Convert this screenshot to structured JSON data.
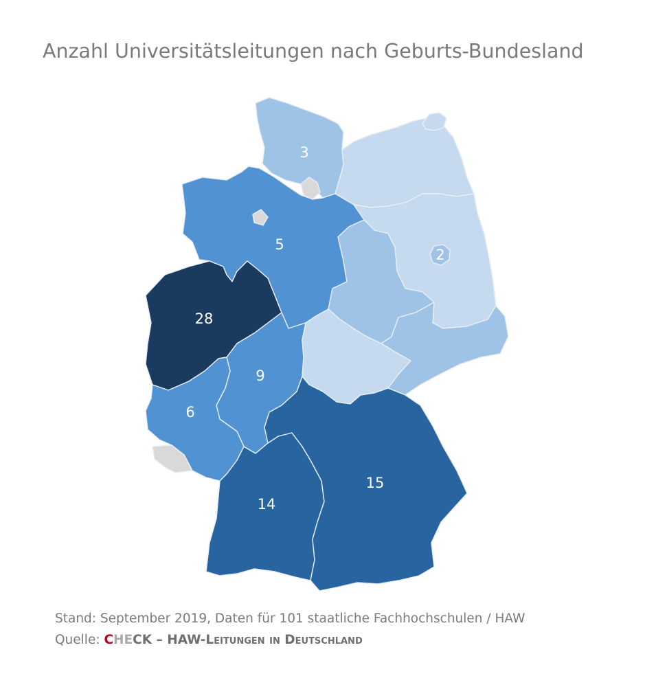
{
  "title": "Anzahl Universitätsleitungen nach Geburts-Bundesland",
  "colors": {
    "scale_1": "#c5daef",
    "scale_2": "#9fc3e6",
    "scale_3": "#5192d3",
    "scale_4": "#2865a0",
    "scale_5": "#1b3a60",
    "no_data": "#d9d9d9"
  },
  "map_values": [
    {
      "region": "schleswig-holstein",
      "value": "3"
    },
    {
      "region": "niedersachsen",
      "value": "5"
    },
    {
      "region": "berlin",
      "value": "2"
    },
    {
      "region": "nordrhein-westfalen",
      "value": "28"
    },
    {
      "region": "hessen",
      "value": "9"
    },
    {
      "region": "rheinland-pfalz",
      "value": "6"
    },
    {
      "region": "bayern",
      "value": "15"
    },
    {
      "region": "baden-wuerttemberg",
      "value": "14"
    }
  ],
  "footer": {
    "stand": "Stand: September 2019, Daten für 101 staatliche Fachhochschulen / HAW",
    "quelle_prefix": "Quelle: ",
    "source_c": "C",
    "source_he": "HE",
    "source_ck": "CK",
    "source_rest": " – HAW-Leitungen in Deutschland"
  }
}
